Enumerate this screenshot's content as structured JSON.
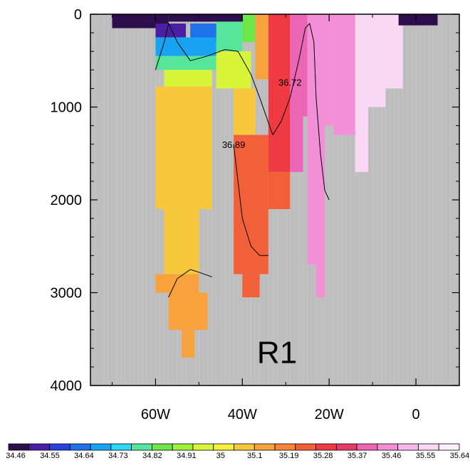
{
  "chart_data": {
    "type": "heatmap",
    "title": "",
    "xlabel": "",
    "ylabel": "",
    "xlim": [
      -75,
      10
    ],
    "ylim": [
      0,
      4000
    ],
    "y_inverted": true,
    "x_ticks": [
      {
        "value": -60,
        "label": "60W"
      },
      {
        "value": -40,
        "label": "40W"
      },
      {
        "value": -20,
        "label": "20W"
      },
      {
        "value": 0,
        "label": "0"
      }
    ],
    "y_ticks": [
      {
        "value": 0,
        "label": "0"
      },
      {
        "value": 1000,
        "label": "1000"
      },
      {
        "value": 2000,
        "label": "2000"
      },
      {
        "value": 3000,
        "label": "3000"
      },
      {
        "value": 4000,
        "label": "4000"
      }
    ],
    "panel_label": "R1",
    "missing_color": "#bebebe",
    "colorbar": {
      "levels": [
        "34.46",
        "34.55",
        "34.64",
        "34.73",
        "34.82",
        "34.91",
        "35",
        "35.1",
        "35.19",
        "35.28",
        "35.37",
        "35.46",
        "35.55",
        "35.64"
      ],
      "colors": [
        "#2e0d4d",
        "#4b1fa3",
        "#2b3fdc",
        "#1f72e8",
        "#17a3f2",
        "#2ed7f5",
        "#56e59a",
        "#6ee64a",
        "#9df23a",
        "#d8f53a",
        "#f7ef3d",
        "#f8c83c",
        "#f7a23c",
        "#f78537",
        "#f2603a",
        "#ef3a44",
        "#e83b6a",
        "#ed66b6",
        "#f28fd6",
        "#f6b8ea",
        "#f9d8f4",
        "#fdf0fb"
      ]
    },
    "salinity_blocks": [
      {
        "x": [
          -70,
          -57
        ],
        "depth": [
          0,
          150
        ],
        "value": 34.46
      },
      {
        "x": [
          -57,
          -40
        ],
        "depth": [
          0,
          80
        ],
        "value": 34.46
      },
      {
        "x": [
          -60,
          -53
        ],
        "depth": [
          100,
          250
        ],
        "value": 34.55
      },
      {
        "x": [
          -52,
          -44
        ],
        "depth": [
          100,
          300
        ],
        "value": 34.64
      },
      {
        "x": [
          -60,
          -46
        ],
        "depth": [
          250,
          450
        ],
        "value": 34.73
      },
      {
        "x": [
          -60,
          -46
        ],
        "depth": [
          450,
          600
        ],
        "value": 34.82
      },
      {
        "x": [
          -46,
          -40
        ],
        "depth": [
          80,
          400
        ],
        "value": 34.82
      },
      {
        "x": [
          -40,
          -37
        ],
        "depth": [
          0,
          300
        ],
        "value": 34.91
      },
      {
        "x": [
          -58,
          -47
        ],
        "depth": [
          600,
          780
        ],
        "value": 35
      },
      {
        "x": [
          -46,
          -38
        ],
        "depth": [
          400,
          800
        ],
        "value": 35
      },
      {
        "x": [
          -60,
          -47
        ],
        "depth": [
          780,
          1100
        ],
        "value": 35.1
      },
      {
        "x": [
          -42,
          -37
        ],
        "depth": [
          800,
          1300
        ],
        "value": 35.1
      },
      {
        "x": [
          -60,
          -47
        ],
        "depth": [
          1100,
          2100
        ],
        "value": 35.1
      },
      {
        "x": [
          -58,
          -50
        ],
        "depth": [
          2100,
          2800
        ],
        "value": 35.1
      },
      {
        "x": [
          -60,
          -50
        ],
        "depth": [
          2800,
          3000
        ],
        "value": 35.19
      },
      {
        "x": [
          -57,
          -48
        ],
        "depth": [
          3000,
          3400
        ],
        "value": 35.19
      },
      {
        "x": [
          -54,
          -51
        ],
        "depth": [
          3400,
          3700
        ],
        "value": 35.19
      },
      {
        "x": [
          -37,
          -34
        ],
        "depth": [
          0,
          700
        ],
        "value": 35.19
      },
      {
        "x": [
          -42,
          -34
        ],
        "depth": [
          1300,
          2800
        ],
        "value": 35.28
      },
      {
        "x": [
          -40,
          -36
        ],
        "depth": [
          2800,
          3050
        ],
        "value": 35.28
      },
      {
        "x": [
          -34,
          -29
        ],
        "depth": [
          0,
          1700
        ],
        "value": 35.37
      },
      {
        "x": [
          -34,
          -29
        ],
        "depth": [
          1700,
          2100
        ],
        "value": 35.28
      },
      {
        "x": [
          -29,
          -25
        ],
        "depth": [
          0,
          1100
        ],
        "value": 35.46
      },
      {
        "x": [
          -29,
          -26
        ],
        "depth": [
          1100,
          1700
        ],
        "value": 35.46
      },
      {
        "x": [
          -25,
          -19
        ],
        "depth": [
          0,
          1200
        ],
        "value": 35.55
      },
      {
        "x": [
          -25,
          -21
        ],
        "depth": [
          1200,
          2700
        ],
        "value": 35.55
      },
      {
        "x": [
          -23,
          -21
        ],
        "depth": [
          2700,
          3050
        ],
        "value": 35.55
      },
      {
        "x": [
          -19,
          -13
        ],
        "depth": [
          0,
          1300
        ],
        "value": 35.55
      },
      {
        "x": [
          -14,
          -11
        ],
        "depth": [
          0,
          1700
        ],
        "value": 35.64
      },
      {
        "x": [
          -11,
          -7
        ],
        "depth": [
          0,
          1000
        ],
        "value": 35.64
      },
      {
        "x": [
          -7,
          -3
        ],
        "depth": [
          0,
          800
        ],
        "value": 35.64
      },
      {
        "x": [
          -4,
          5
        ],
        "depth": [
          0,
          120
        ],
        "value": 34.46
      }
    ],
    "contours": [
      {
        "label": "36.72",
        "label_at": [
          -29,
          770
        ],
        "points": [
          [
            -33,
            1300
          ],
          [
            -31,
            1150
          ],
          [
            -29,
            900
          ],
          [
            -27,
            500
          ],
          [
            -25.5,
            150
          ],
          [
            -24.5,
            100
          ],
          [
            -23.5,
            300
          ],
          [
            -23,
            900
          ],
          [
            -22,
            1500
          ],
          [
            -21,
            1900
          ],
          [
            -20,
            2000
          ]
        ]
      },
      {
        "label": "36.89",
        "label_at": [
          -42,
          1440
        ],
        "points": [
          [
            -42,
            1400
          ],
          [
            -41,
            1800
          ],
          [
            -40,
            2200
          ],
          [
            -38,
            2500
          ],
          [
            -36,
            2600
          ],
          [
            -34,
            2600
          ]
        ]
      },
      {
        "label": "",
        "label_at": null,
        "points": [
          [
            -60,
            600
          ],
          [
            -58,
            300
          ],
          [
            -57,
            100
          ],
          [
            -55,
            300
          ],
          [
            -52,
            500
          ],
          [
            -48,
            450
          ],
          [
            -44,
            380
          ],
          [
            -41,
            400
          ],
          [
            -38,
            650
          ],
          [
            -36,
            900
          ],
          [
            -33,
            1300
          ]
        ]
      },
      {
        "label": "",
        "label_at": null,
        "points": [
          [
            -57,
            3050
          ],
          [
            -55,
            2850
          ],
          [
            -52,
            2750
          ],
          [
            -50,
            2780
          ],
          [
            -47,
            2830
          ]
        ]
      }
    ]
  }
}
